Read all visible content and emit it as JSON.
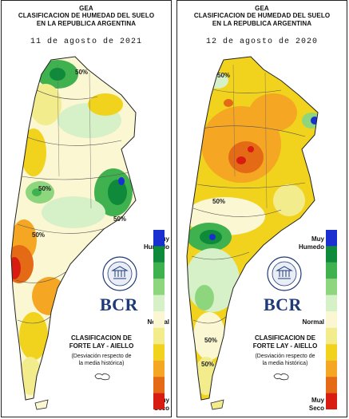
{
  "left": {
    "org": "GEA",
    "title_line1": "CLASIFICACION DE HUMEDAD DEL SUELO",
    "title_line2": "EN LA REPUBLICA ARGENTINA",
    "date": "11 de agosto de 2021",
    "contour_labels": [
      "50%",
      "50%",
      "50%",
      "50%"
    ]
  },
  "right": {
    "org": "GEA",
    "title_line1": "CLASIFICACION DE HUMEDAD DEL SUELO",
    "title_line2": "EN LA REPUBLICA ARGENTINA",
    "date": "12 de agosto de 2020",
    "contour_labels": [
      "50%",
      "50%",
      "50%",
      "50%"
    ]
  },
  "legend": {
    "top_line1": "Muy",
    "top_line2": "Humedo",
    "middle": "Normal",
    "bottom_line1": "Muy",
    "bottom_line2": "Seco",
    "colors": [
      "#1a2fd0",
      "#0e8a3a",
      "#3fb14e",
      "#8ed67d",
      "#d6f0c8",
      "#fbf7d2",
      "#f3ec8d",
      "#f1d21d",
      "#f5a623",
      "#e46a16",
      "#d81c12"
    ]
  },
  "classification": {
    "line1": "CLASIFICACION DE",
    "line2": "FORTE LAY - AIELLO",
    "note_line1": "(Desviación respecto de",
    "note_line2": "la media histórica)"
  },
  "brand": {
    "bcr": "BCR"
  }
}
